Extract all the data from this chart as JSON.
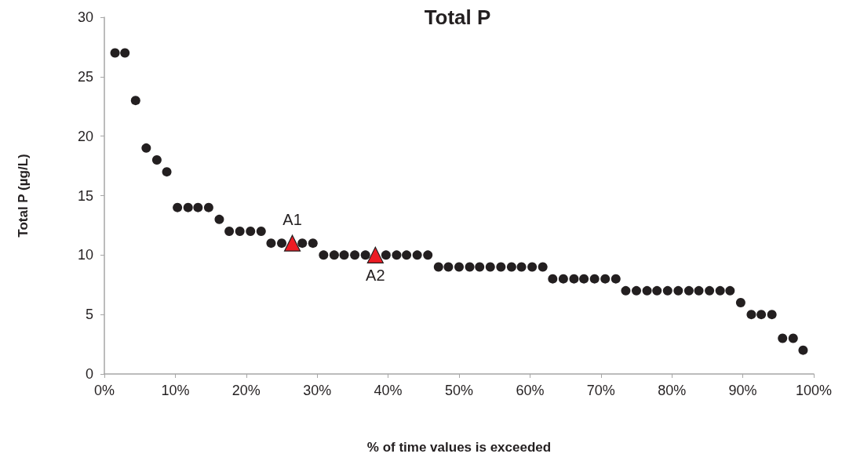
{
  "chart_data": {
    "type": "scatter",
    "title": "Total P",
    "xlabel": "% of time values is exceeded",
    "ylabel": "Total P (µg/L)",
    "xlim": [
      0,
      100
    ],
    "xticks": [
      {
        "value": 0,
        "label": "0%"
      },
      {
        "value": 10,
        "label": "10%"
      },
      {
        "value": 20,
        "label": "20%"
      },
      {
        "value": 30,
        "label": "30%"
      },
      {
        "value": 40,
        "label": "40%"
      },
      {
        "value": 50,
        "label": "50%"
      },
      {
        "value": 60,
        "label": "60%"
      },
      {
        "value": 70,
        "label": "70%"
      },
      {
        "value": 80,
        "label": "80%"
      },
      {
        "value": 90,
        "label": "90%"
      },
      {
        "value": 100,
        "label": "100%"
      }
    ],
    "ylim": [
      0,
      30
    ],
    "yticks": [
      0,
      5,
      10,
      15,
      20,
      25,
      30
    ],
    "grid": false,
    "series": [
      {
        "color": "#231f20",
        "marker": "circle",
        "x": [
          1.5,
          2.9,
          4.4,
          5.9,
          7.4,
          8.8,
          10.3,
          11.8,
          13.2,
          14.7,
          16.2,
          17.6,
          19.1,
          20.6,
          22.1,
          23.5,
          25.0,
          27.9,
          29.4,
          30.9,
          32.4,
          33.8,
          35.3,
          36.8,
          39.7,
          41.2,
          42.6,
          44.1,
          45.6,
          47.1,
          48.5,
          50.0,
          51.5,
          52.9,
          54.4,
          55.9,
          57.4,
          58.8,
          60.3,
          61.8,
          63.2,
          64.7,
          66.2,
          67.6,
          69.1,
          70.6,
          72.1,
          73.5,
          75.0,
          76.5,
          77.9,
          79.4,
          80.9,
          82.4,
          83.8,
          85.3,
          86.8,
          88.2,
          89.7,
          91.2,
          92.6,
          94.1,
          95.6,
          97.1,
          98.5
        ],
        "values": [
          27,
          27,
          23,
          19,
          18,
          17,
          14,
          14,
          14,
          14,
          13,
          12,
          12,
          12,
          12,
          11,
          11,
          11,
          11,
          10,
          10,
          10,
          10,
          10,
          10,
          10,
          10,
          10,
          10,
          9,
          9,
          9,
          9,
          9,
          9,
          9,
          9,
          9,
          9,
          9,
          8,
          8,
          8,
          8,
          8,
          8,
          8,
          7,
          7,
          7,
          7,
          7,
          7,
          7,
          7,
          7,
          7,
          7,
          6,
          5,
          5,
          5,
          3,
          3,
          2
        ]
      },
      {
        "color": "#ed1c24",
        "marker": "triangle",
        "x": [
          26.5,
          38.2
        ],
        "values": [
          11,
          10
        ]
      }
    ],
    "annotations": [
      {
        "text": "A1",
        "x": 26.5,
        "y": 11
      },
      {
        "text": "A2",
        "x": 38.2,
        "y": 10
      }
    ]
  }
}
